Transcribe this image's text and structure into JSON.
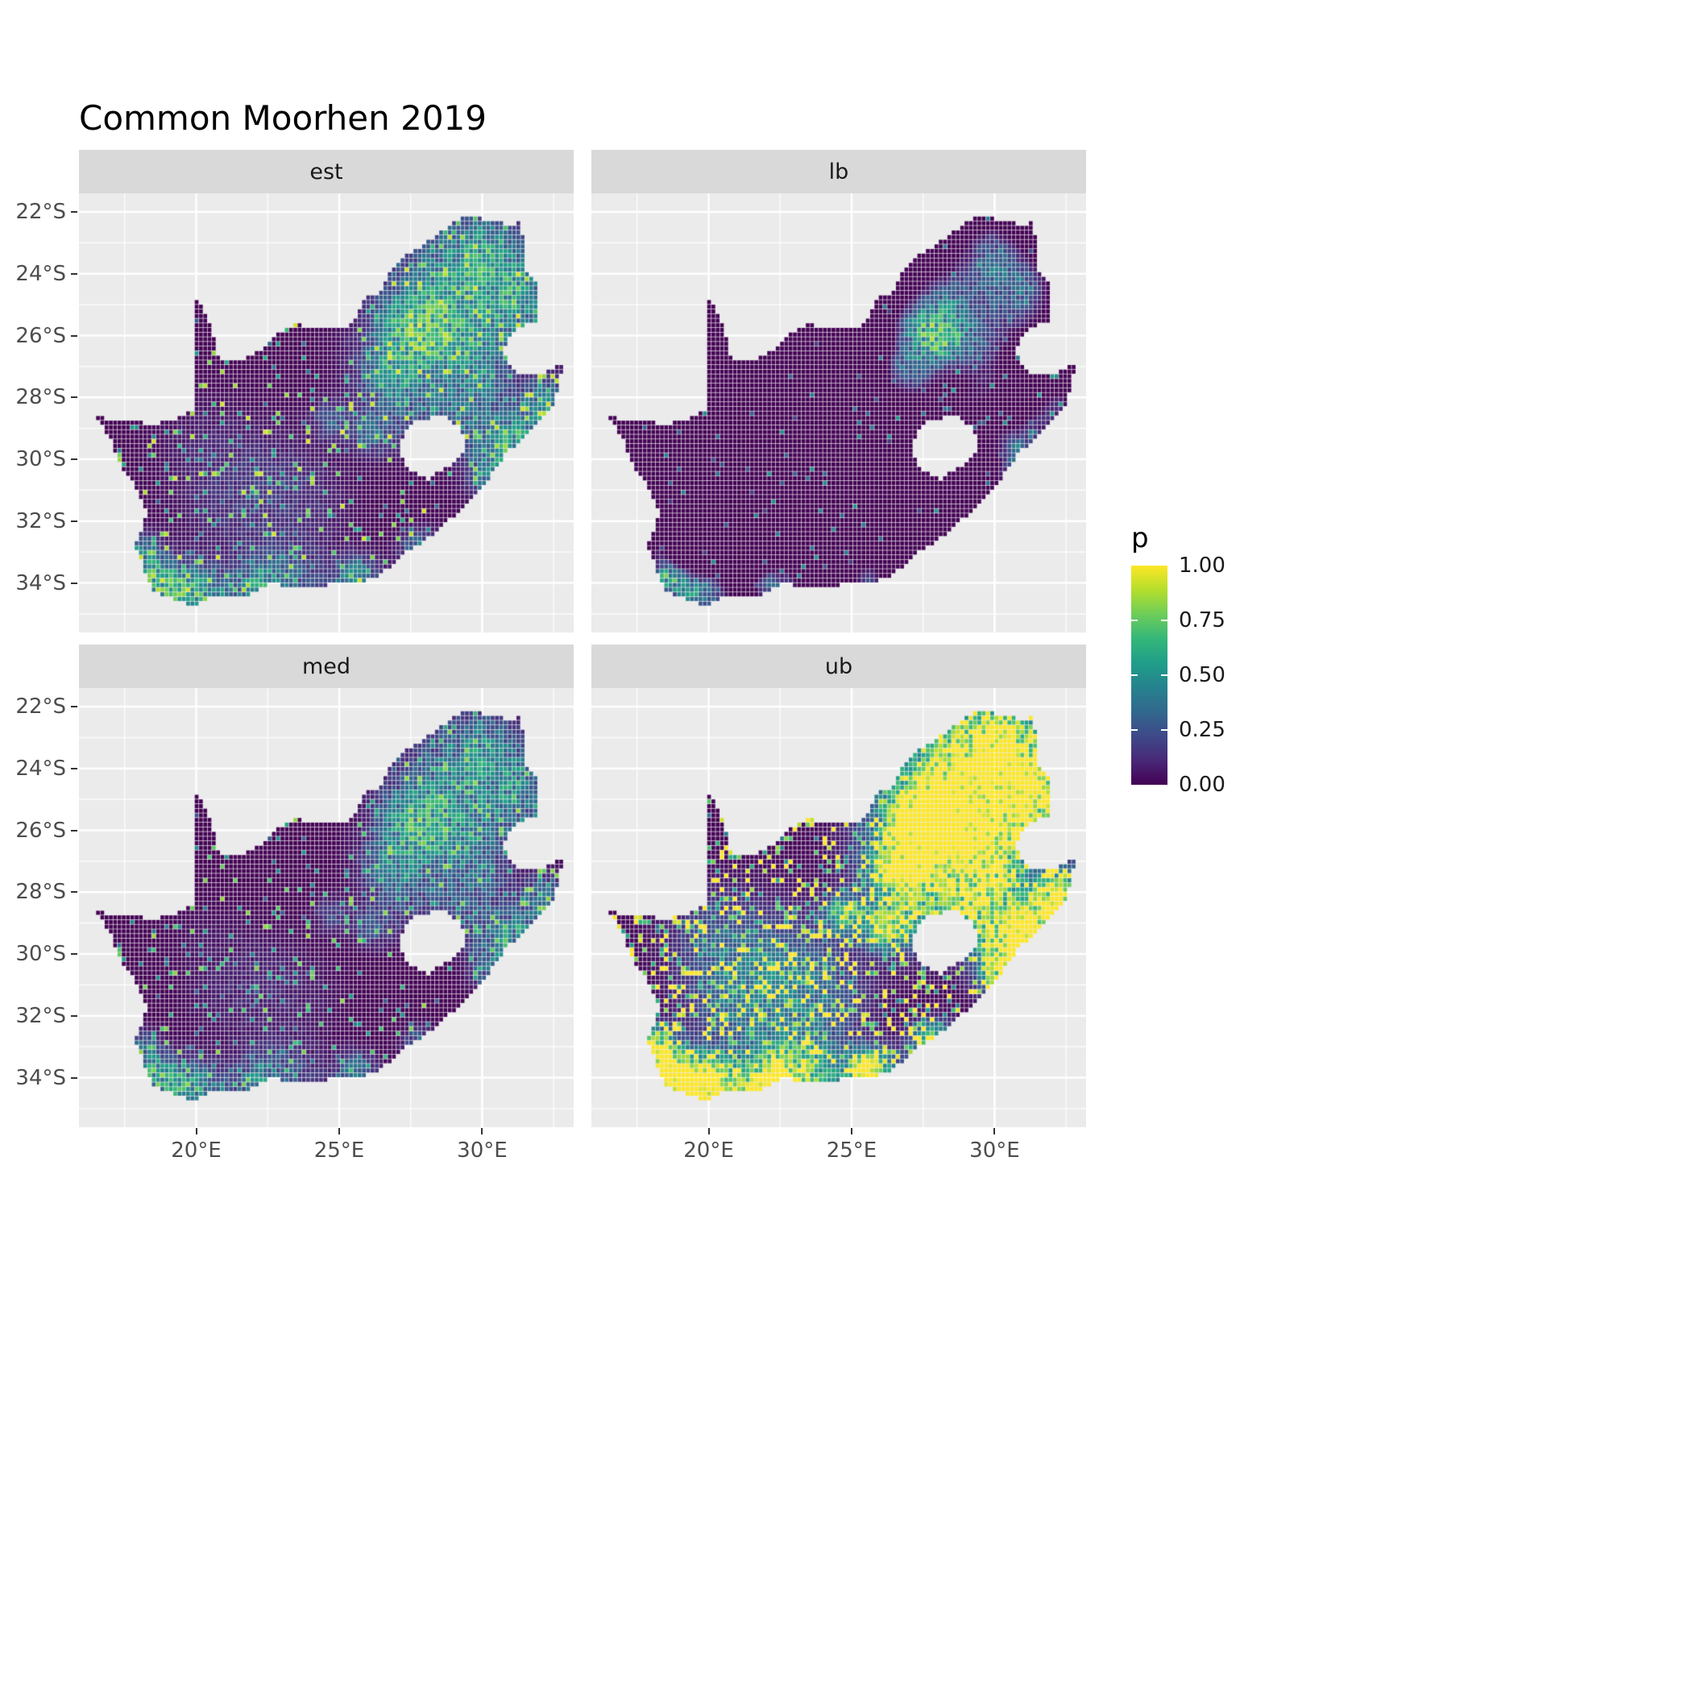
{
  "title": "Common Moorhen 2019",
  "legend": {
    "title": "p",
    "ticks": [
      "1.00",
      "0.75",
      "0.50",
      "0.25",
      "0.00"
    ],
    "tick_values": [
      1,
      0.75,
      0.5,
      0.25,
      0
    ]
  },
  "colors": {
    "background": "#FFFFFF",
    "panel_bg": "#EBEBEB",
    "strip_bg": "#D9D9D9",
    "grid_major": "#FFFFFF",
    "grid_minor": "#FFFFFF",
    "axis_text": "#4D4D4D",
    "strip_text": "#1A1A1A",
    "title_text": "#000000"
  },
  "chart_data": {
    "type": "heatmap",
    "title": "Common Moorhen 2019",
    "region": "South Africa occupancy probability raster, faceted by posterior summary",
    "facets": [
      {
        "key": "est",
        "label": "est",
        "pattern": "posterior estimate: mostly near 0 (dark purple); strong hotspot over Gauteng (~28E, 26S), scattered mid-high values in the north-east, along KZN coast and along the southern/Cape coast; sparse teal speckle inland"
      },
      {
        "key": "lb",
        "label": "lb",
        "pattern": "lower bound: nearly everywhere ~0; a small bright cluster at Gauteng and very sparse speckles near coasts"
      },
      {
        "key": "med",
        "label": "med",
        "pattern": "median: similar to est but slightly dimmer and sparser"
      },
      {
        "key": "ub",
        "label": "ub",
        "pattern": "upper bound: large near-1 (yellow) areas over Gauteng, the north-east, KZN coast and Cape coasts; dense yellow speckle over most of the interior"
      }
    ],
    "x_axis": {
      "label": "",
      "ticks": [
        "20°E",
        "25°E",
        "30°E"
      ],
      "values": [
        20,
        25,
        30
      ],
      "range": [
        15.9,
        33.2
      ]
    },
    "y_axis": {
      "label": "",
      "ticks": [
        "22°S",
        "24°S",
        "26°S",
        "28°S",
        "30°S",
        "32°S",
        "34°S"
      ],
      "values": [
        -22,
        -24,
        -26,
        -28,
        -30,
        -32,
        -34
      ],
      "range": [
        -35.6,
        -21.4
      ]
    },
    "legend": {
      "title": "p",
      "range": [
        0,
        1
      ],
      "ticks": [
        1,
        0.75,
        0.5,
        0.25,
        0
      ],
      "position": "right"
    },
    "colormap": {
      "name": "viridis",
      "anchors": [
        "#440154",
        "#482878",
        "#3E4989",
        "#31688E",
        "#26828E",
        "#1F9E89",
        "#35B779",
        "#6DCD59",
        "#B4DE2C",
        "#FDE725"
      ]
    },
    "cell_size_deg": 0.15,
    "facet_params": {
      "est": {
        "floor": 0,
        "gain": 1.0,
        "gamma": 1.0,
        "speckle": 0.05,
        "speckle_gain": 0.95
      },
      "lb": {
        "floor": 0.55,
        "gain": 1.0,
        "gamma": 1.1,
        "speckle": 0.012,
        "speckle_gain": 0.55
      },
      "med": {
        "floor": 0.03,
        "gain": 0.92,
        "gamma": 1.15,
        "speckle": 0.042,
        "speckle_gain": 0.85
      },
      "ub": {
        "floor": 0,
        "gain": 2.3,
        "gamma": 0.8,
        "speckle": 0.17,
        "speckle_gain": 1.25
      }
    },
    "hotspots": [
      [
        28.05,
        -26.05,
        0.55,
        1.0
      ],
      [
        28.15,
        -25.85,
        1.25,
        0.7
      ],
      [
        27.0,
        -26.9,
        0.5,
        0.45
      ],
      [
        27.25,
        -25.7,
        0.5,
        0.5
      ],
      [
        28.35,
        -24.9,
        0.8,
        0.4
      ],
      [
        29.3,
        -23.6,
        1.3,
        0.38
      ],
      [
        29.95,
        -23.05,
        0.7,
        0.45
      ],
      [
        30.9,
        -25.2,
        0.9,
        0.5
      ],
      [
        29.6,
        -26.5,
        0.8,
        0.42
      ],
      [
        29.95,
        -27.7,
        0.6,
        0.38
      ],
      [
        30.3,
        -29.4,
        0.7,
        0.5
      ],
      [
        30.95,
        -29.85,
        0.45,
        0.75
      ],
      [
        31.6,
        -28.9,
        0.6,
        0.5
      ],
      [
        32.3,
        -28.2,
        0.6,
        0.55
      ],
      [
        30.4,
        -30.7,
        0.5,
        0.55
      ],
      [
        27.9,
        -33.0,
        0.45,
        0.6
      ],
      [
        25.6,
        -33.9,
        0.5,
        0.7
      ],
      [
        23.0,
        -34.0,
        0.9,
        0.5
      ],
      [
        22.15,
        -34.15,
        0.5,
        0.6
      ],
      [
        20.1,
        -34.45,
        0.7,
        0.7
      ],
      [
        19.4,
        -34.3,
        0.5,
        0.65
      ],
      [
        18.55,
        -33.9,
        0.5,
        0.95
      ],
      [
        18.2,
        -33.0,
        0.4,
        0.5
      ],
      [
        26.2,
        -29.1,
        0.45,
        0.45
      ],
      [
        26.85,
        -27.3,
        0.7,
        0.4
      ],
      [
        24.75,
        -28.75,
        0.4,
        0.4
      ],
      [
        27.5,
        -28.2,
        1.0,
        0.28
      ],
      [
        29.1,
        -28.3,
        0.5,
        0.33
      ],
      [
        22.5,
        -30.5,
        1.2,
        0.14
      ],
      [
        21.0,
        -31.6,
        1.0,
        0.14
      ],
      [
        23.8,
        -31.5,
        1.0,
        0.12
      ],
      [
        20.3,
        -29.5,
        1.0,
        0.1
      ],
      [
        31.3,
        -24.3,
        0.8,
        0.45
      ],
      [
        30.2,
        -24.0,
        0.7,
        0.4
      ]
    ],
    "map_outline": [
      [
        16.45,
        -28.6
      ],
      [
        17.2,
        -28.76
      ],
      [
        17.9,
        -28.8
      ],
      [
        18.6,
        -28.87
      ],
      [
        19.3,
        -28.72
      ],
      [
        19.7,
        -28.5
      ],
      [
        19.99,
        -28.42
      ],
      [
        19.99,
        -24.77
      ],
      [
        20.35,
        -25.35
      ],
      [
        20.6,
        -25.95
      ],
      [
        20.75,
        -26.6
      ],
      [
        20.9,
        -26.82
      ],
      [
        21.5,
        -26.85
      ],
      [
        22.0,
        -26.65
      ],
      [
        22.55,
        -26.2
      ],
      [
        22.9,
        -25.95
      ],
      [
        23.45,
        -25.6
      ],
      [
        24.0,
        -25.75
      ],
      [
        24.7,
        -25.82
      ],
      [
        25.35,
        -25.7
      ],
      [
        25.6,
        -25.5
      ],
      [
        25.9,
        -24.75
      ],
      [
        26.4,
        -24.65
      ],
      [
        26.85,
        -23.85
      ],
      [
        27.15,
        -23.55
      ],
      [
        27.75,
        -23.2
      ],
      [
        28.25,
        -22.85
      ],
      [
        28.95,
        -22.4
      ],
      [
        29.35,
        -22.2
      ],
      [
        29.9,
        -22.18
      ],
      [
        30.3,
        -22.33
      ],
      [
        31.1,
        -22.4
      ],
      [
        31.3,
        -22.35
      ],
      [
        31.55,
        -23.2
      ],
      [
        31.55,
        -23.9
      ],
      [
        31.9,
        -24.3
      ],
      [
        31.98,
        -24.9
      ],
      [
        32.0,
        -25.55
      ],
      [
        31.35,
        -25.7
      ],
      [
        30.95,
        -26.0
      ],
      [
        30.8,
        -26.5
      ],
      [
        30.9,
        -26.85
      ],
      [
        31.15,
        -27.2
      ],
      [
        31.6,
        -27.3
      ],
      [
        31.97,
        -27.31
      ],
      [
        32.85,
        -26.85
      ],
      [
        32.55,
        -28.2
      ],
      [
        32.0,
        -28.8
      ],
      [
        31.25,
        -29.45
      ],
      [
        30.7,
        -30.0
      ],
      [
        30.15,
        -30.8
      ],
      [
        29.5,
        -31.45
      ],
      [
        28.7,
        -32.1
      ],
      [
        28.0,
        -32.65
      ],
      [
        27.4,
        -32.95
      ],
      [
        26.45,
        -33.75
      ],
      [
        25.65,
        -34.0
      ],
      [
        25.0,
        -34.05
      ],
      [
        24.2,
        -34.1
      ],
      [
        23.4,
        -34.1
      ],
      [
        22.6,
        -34.05
      ],
      [
        21.9,
        -34.4
      ],
      [
        21.0,
        -34.4
      ],
      [
        20.3,
        -34.55
      ],
      [
        20.0,
        -34.82
      ],
      [
        19.45,
        -34.62
      ],
      [
        18.85,
        -34.4
      ],
      [
        18.45,
        -34.2
      ],
      [
        18.3,
        -33.9
      ],
      [
        18.1,
        -33.3
      ],
      [
        17.85,
        -32.8
      ],
      [
        18.2,
        -32.1
      ],
      [
        18.25,
        -31.6
      ],
      [
        17.9,
        -30.9
      ],
      [
        17.35,
        -30.2
      ],
      [
        17.05,
        -29.4
      ],
      [
        16.7,
        -28.9
      ]
    ],
    "lesotho_hole": [
      [
        27.05,
        -29.65
      ],
      [
        27.45,
        -28.9
      ],
      [
        27.95,
        -28.7
      ],
      [
        28.65,
        -28.6
      ],
      [
        29.15,
        -28.9
      ],
      [
        29.45,
        -29.3
      ],
      [
        29.3,
        -29.85
      ],
      [
        28.85,
        -30.2
      ],
      [
        28.15,
        -30.65
      ],
      [
        27.6,
        -30.4
      ],
      [
        27.25,
        -30.05
      ]
    ]
  }
}
